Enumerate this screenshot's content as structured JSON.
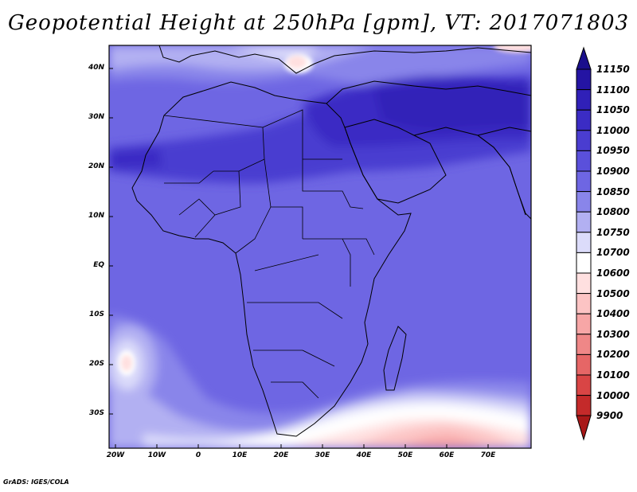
{
  "title": "Geopotential Height at 250hPa [gpm], VT: 2017071803",
  "credit": "GrADS: IGES/COLA",
  "map": {
    "region": "Africa, Middle East and western Indian Ocean",
    "field": "250 hPa geopotential height",
    "lat_labels": [
      "40N",
      "30N",
      "20N",
      "10N",
      "EQ",
      "10S",
      "20S",
      "30S"
    ],
    "lon_labels": [
      "20W",
      "10W",
      "0",
      "10E",
      "20E",
      "30E",
      "40E",
      "50E",
      "60E",
      "70E"
    ]
  },
  "colorbar": {
    "labels": [
      "11150",
      "11100",
      "11050",
      "11000",
      "10950",
      "10900",
      "10850",
      "10800",
      "10750",
      "10700",
      "10600",
      "10500",
      "10400",
      "10300",
      "10200",
      "10100",
      "10000",
      "9900"
    ],
    "colors": [
      "#1a0f8c",
      "#2414a3",
      "#3020b8",
      "#3b2cc4",
      "#4a3dd0",
      "#5a50db",
      "#6e66e3",
      "#8985ea",
      "#b2b0f2",
      "#dcdcfa",
      "#ffffff",
      "#ffe0e0",
      "#fcc4c4",
      "#f7a6a6",
      "#ef8787",
      "#e66666",
      "#d94545",
      "#c42a2a",
      "#a81818"
    ],
    "extend": "both"
  }
}
